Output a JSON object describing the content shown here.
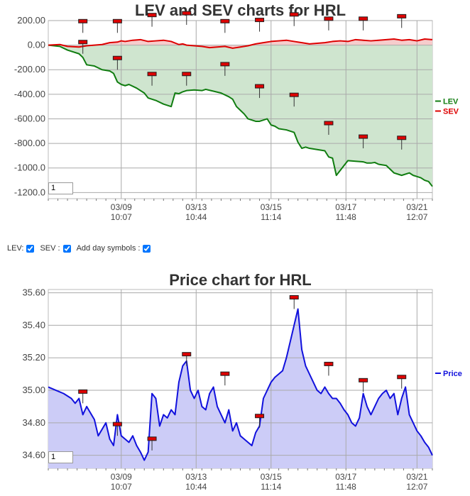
{
  "controls": {
    "lev_label": "LEV:",
    "sev_label": "SEV :",
    "day_symbols_label": "Add day symbols :",
    "lev_checked": true,
    "sev_checked": true,
    "day_symbols_checked": true
  },
  "chart_data": [
    {
      "type": "line",
      "title": "LEV and SEV charts for HRL",
      "ylim": [
        -1250,
        200
      ],
      "yticks": [
        200,
        0,
        -200,
        -400,
        -600,
        -800,
        -1000,
        -1200
      ],
      "ytick_labels": [
        "200.00",
        "0.00",
        "-200.00",
        "-400.00",
        "-600.00",
        "-800.00",
        "-1000.0",
        "-1200.0"
      ],
      "xlim": [
        0,
        100
      ],
      "xtick_positions": [
        19,
        38.5,
        58,
        77.5,
        96
      ],
      "xtick_labels": [
        [
          "03/09",
          "10:07"
        ],
        [
          "03/13",
          "10:44"
        ],
        [
          "03/15",
          "11:14"
        ],
        [
          "03/17",
          "11:48"
        ],
        [
          "03/21",
          "12:07"
        ]
      ],
      "page_value": "1",
      "legend_position": "right",
      "series": [
        {
          "name": "LEV",
          "color": "#107d10",
          "fill": "#cfe5cf",
          "x": [
            0,
            3,
            5,
            8,
            9,
            10,
            11,
            12,
            13,
            14,
            16,
            17,
            18,
            19,
            20,
            21,
            23,
            25,
            26,
            27,
            28,
            30,
            32,
            33,
            34,
            35,
            36,
            38,
            40,
            41,
            43,
            45,
            47,
            48,
            49,
            50,
            51,
            52,
            53,
            54,
            55,
            57,
            58,
            59,
            60,
            62,
            63,
            64,
            65,
            66,
            67,
            68,
            70,
            72,
            73,
            74,
            75,
            77,
            78,
            80,
            82,
            83,
            84,
            85,
            86,
            88,
            90,
            91,
            92,
            94,
            95,
            96,
            97,
            98,
            99,
            100
          ],
          "y": [
            0,
            -10,
            -40,
            -70,
            -100,
            -160,
            -165,
            -170,
            -185,
            -200,
            -210,
            -230,
            -300,
            -320,
            -330,
            -320,
            -350,
            -390,
            -430,
            -440,
            -450,
            -480,
            -500,
            -390,
            -395,
            -380,
            -370,
            -365,
            -370,
            -360,
            -375,
            -390,
            -420,
            -440,
            -500,
            -530,
            -560,
            -600,
            -610,
            -620,
            -620,
            -600,
            -650,
            -660,
            -680,
            -690,
            -700,
            -710,
            -790,
            -840,
            -830,
            -840,
            -850,
            -860,
            -910,
            -920,
            -1060,
            -980,
            -940,
            -945,
            -950,
            -960,
            -960,
            -955,
            -970,
            -980,
            -1040,
            -1050,
            -1060,
            -1040,
            -1060,
            -1070,
            -1080,
            -1100,
            -1110,
            -1150
          ]
        },
        {
          "name": "SEV",
          "color": "#dd0000",
          "fill": "#f6cccc",
          "x": [
            0,
            3,
            5,
            8,
            10,
            12,
            14,
            16,
            18,
            19,
            20,
            22,
            24,
            26,
            28,
            30,
            32,
            34,
            35,
            36,
            38,
            40,
            42,
            44,
            46,
            48,
            50,
            52,
            54,
            56,
            58,
            60,
            62,
            64,
            66,
            68,
            70,
            72,
            74,
            76,
            78,
            80,
            82,
            84,
            86,
            88,
            90,
            92,
            94,
            96,
            98,
            100
          ],
          "y": [
            0,
            5,
            -10,
            -15,
            -5,
            0,
            5,
            20,
            25,
            35,
            30,
            40,
            45,
            30,
            35,
            40,
            30,
            5,
            10,
            0,
            -5,
            -10,
            -20,
            -15,
            -10,
            -25,
            -15,
            -5,
            10,
            20,
            30,
            35,
            40,
            30,
            20,
            10,
            15,
            20,
            30,
            35,
            30,
            45,
            40,
            35,
            40,
            45,
            50,
            40,
            45,
            35,
            50,
            45
          ]
        }
      ],
      "day_markers": [
        {
          "x": 9,
          "y": -70
        },
        {
          "x": 18,
          "y": -200
        },
        {
          "x": 27,
          "y": -330
        },
        {
          "x": 36,
          "y": -330
        },
        {
          "x": 46,
          "y": -250
        },
        {
          "x": 55,
          "y": -430
        },
        {
          "x": 64,
          "y": -500
        },
        {
          "x": 73,
          "y": -730
        },
        {
          "x": 82,
          "y": -840
        },
        {
          "x": 92,
          "y": -850
        },
        {
          "x": 9,
          "y": 100
        },
        {
          "x": 18,
          "y": 100
        },
        {
          "x": 27,
          "y": 150
        },
        {
          "x": 36,
          "y": 165
        },
        {
          "x": 46,
          "y": 100
        },
        {
          "x": 55,
          "y": 110
        },
        {
          "x": 64,
          "y": 155
        },
        {
          "x": 73,
          "y": 120
        },
        {
          "x": 82,
          "y": 120
        },
        {
          "x": 92,
          "y": 140
        }
      ]
    },
    {
      "type": "area",
      "title": "Price chart for HRL",
      "ylim": [
        34.52,
        35.62
      ],
      "yticks": [
        35.6,
        35.4,
        35.2,
        35.0,
        34.8,
        34.6
      ],
      "ytick_labels": [
        "35.60",
        "35.40",
        "35.20",
        "35.00",
        "34.80",
        "34.60"
      ],
      "xlim": [
        0,
        100
      ],
      "xtick_positions": [
        19,
        38.5,
        58,
        77.5,
        96
      ],
      "xtick_labels": [
        [
          "03/09",
          "10:07"
        ],
        [
          "03/13",
          "10:44"
        ],
        [
          "03/15",
          "11:14"
        ],
        [
          "03/17",
          "11:48"
        ],
        [
          "03/21",
          "12:07"
        ]
      ],
      "page_value": "1",
      "legend_position": "right",
      "series": [
        {
          "name": "Price",
          "color": "#1111dd",
          "fill": "#ccccf7",
          "x": [
            0,
            2,
            4,
            6,
            7,
            8,
            9,
            10,
            12,
            13,
            15,
            16,
            17,
            18,
            19,
            20,
            21,
            22,
            23,
            24,
            25,
            26,
            27,
            28,
            29,
            30,
            31,
            32,
            33,
            34,
            35,
            36,
            37,
            38,
            39,
            40,
            41,
            42,
            43,
            44,
            45,
            46,
            47,
            48,
            49,
            50,
            51,
            52,
            53,
            54,
            55,
            56,
            57,
            58,
            59,
            60,
            61,
            62,
            63,
            64,
            65,
            66,
            67,
            68,
            69,
            70,
            71,
            72,
            73,
            74,
            75,
            76,
            77,
            78,
            79,
            80,
            81,
            82,
            83,
            84,
            85,
            86,
            87,
            88,
            89,
            90,
            91,
            92,
            93,
            94,
            95,
            96,
            97,
            98,
            99,
            100
          ],
          "y": [
            35.02,
            35.0,
            34.98,
            34.95,
            34.92,
            34.95,
            34.85,
            34.9,
            34.82,
            34.72,
            34.8,
            34.7,
            34.66,
            34.85,
            34.72,
            34.7,
            34.68,
            34.72,
            34.66,
            34.62,
            34.57,
            34.62,
            34.98,
            34.95,
            34.78,
            34.85,
            34.83,
            34.88,
            34.85,
            35.05,
            35.15,
            35.18,
            35.0,
            34.95,
            35.0,
            34.9,
            34.88,
            34.98,
            35.02,
            34.9,
            34.85,
            34.8,
            34.88,
            34.75,
            34.8,
            34.72,
            34.7,
            34.68,
            34.66,
            34.74,
            34.78,
            34.95,
            35.0,
            35.05,
            35.08,
            35.1,
            35.12,
            35.2,
            35.3,
            35.4,
            35.5,
            35.25,
            35.15,
            35.1,
            35.05,
            35.0,
            34.98,
            35.02,
            34.98,
            34.95,
            34.95,
            34.92,
            34.88,
            34.85,
            34.8,
            34.78,
            34.83,
            34.98,
            34.9,
            34.85,
            34.9,
            34.95,
            34.98,
            35.0,
            34.95,
            34.98,
            34.85,
            34.95,
            35.02,
            34.85,
            34.8,
            34.75,
            34.72,
            34.68,
            34.65,
            34.6
          ]
        }
      ],
      "day_markers": [
        {
          "x": 9,
          "y": 34.92
        },
        {
          "x": 18,
          "y": 34.72
        },
        {
          "x": 27,
          "y": 34.63
        },
        {
          "x": 36,
          "y": 35.15
        },
        {
          "x": 46,
          "y": 35.03
        },
        {
          "x": 55,
          "y": 34.77
        },
        {
          "x": 64,
          "y": 35.5
        },
        {
          "x": 73,
          "y": 35.09
        },
        {
          "x": 82,
          "y": 34.99
        },
        {
          "x": 92,
          "y": 35.01
        }
      ]
    }
  ]
}
